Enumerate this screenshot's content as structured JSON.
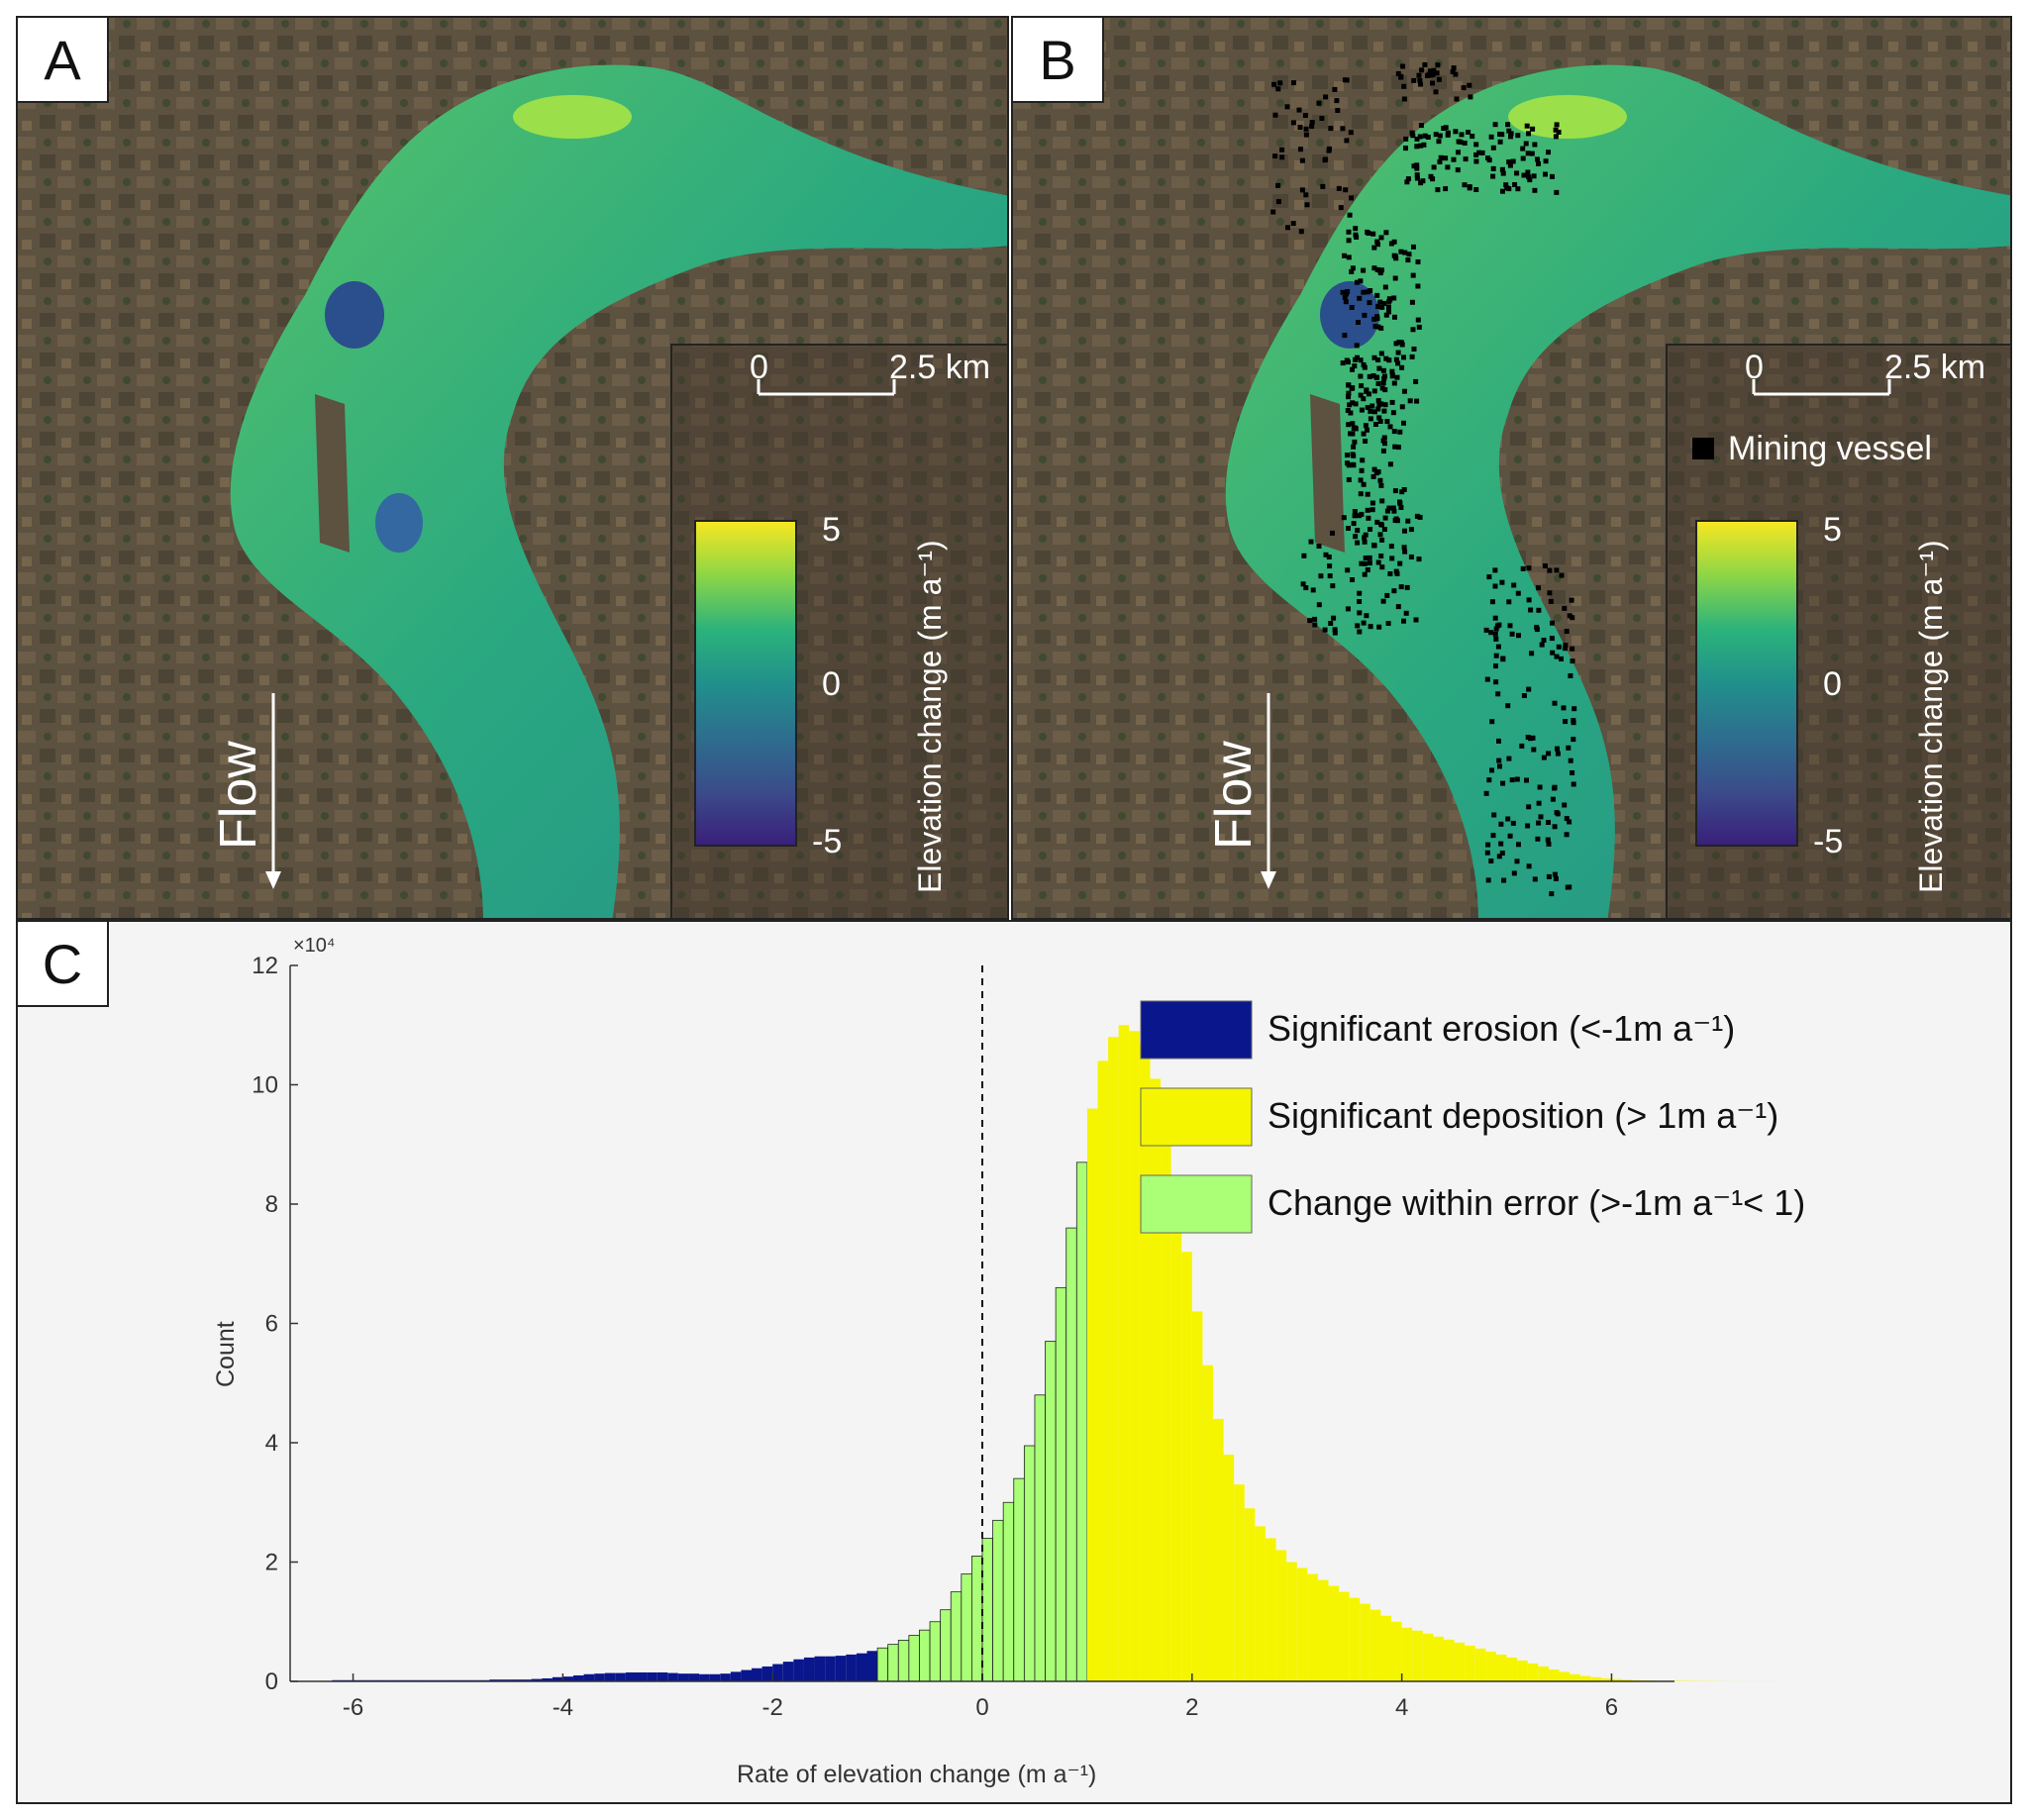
{
  "panels": {
    "a": {
      "letter": "A",
      "scale_bar": {
        "start_label": "0",
        "end_label": "2.5 km"
      },
      "flow_label": "Flow",
      "colorbar": {
        "max_label": "5",
        "mid_label": "0",
        "min_label": "-5",
        "title": "Elevation change (m a⁻¹)",
        "colors": [
          "#f9e721",
          "#8ed645",
          "#2cb37b",
          "#21908c",
          "#2d6e8e",
          "#3b4c8a",
          "#3a1f7a"
        ]
      }
    },
    "b": {
      "letter": "B",
      "scale_bar": {
        "start_label": "0",
        "end_label": "2.5 km"
      },
      "legend_label": "Mining vessel",
      "flow_label": "Flow",
      "colorbar": {
        "max_label": "5",
        "mid_label": "0",
        "min_label": "-5",
        "title": "Elevation change (m a⁻¹)",
        "colors": [
          "#f9e721",
          "#8ed645",
          "#2cb37b",
          "#21908c",
          "#2d6e8e",
          "#3b4c8a",
          "#3a1f7a"
        ]
      }
    },
    "c": {
      "letter": "C"
    }
  },
  "chart_data": {
    "type": "bar",
    "xlabel": "Rate of elevation change (m a⁻¹)",
    "ylabel": "Count",
    "y_multiplier_label": "×10⁴",
    "xlim": [
      -6.6,
      6.6
    ],
    "ylim": [
      0,
      120000
    ],
    "x_ticks": [
      -6,
      -4,
      -2,
      0,
      2,
      4,
      6
    ],
    "y_ticks": [
      0,
      20000,
      40000,
      60000,
      80000,
      100000,
      120000
    ],
    "y_tick_labels": [
      "0",
      "2",
      "4",
      "6",
      "8",
      "10",
      "12"
    ],
    "bin_width": 0.1,
    "bin_start": -6.2,
    "counts": [
      200,
      200,
      200,
      200,
      200,
      200,
      200,
      200,
      200,
      200,
      200,
      200,
      200,
      200,
      200,
      300,
      300,
      300,
      300,
      400,
      500,
      700,
      800,
      1000,
      1200,
      1300,
      1400,
      1400,
      1500,
      1500,
      1500,
      1500,
      1400,
      1300,
      1300,
      1200,
      1200,
      1300,
      1600,
      1900,
      2200,
      2500,
      2900,
      3300,
      3700,
      4000,
      4200,
      4200,
      4300,
      4500,
      4700,
      5100,
      5600,
      6200,
      6900,
      7700,
      8600,
      10000,
      12000,
      15000,
      18000,
      21000,
      24000,
      27000,
      30000,
      34000,
      39500,
      48000,
      57000,
      66000,
      76000,
      87000,
      96000,
      104000,
      108000,
      110000,
      109000,
      107000,
      101000,
      92000,
      81000,
      72000,
      62000,
      53000,
      44000,
      38000,
      33000,
      29000,
      26000,
      24000,
      22000,
      20000,
      19000,
      18000,
      17000,
      16000,
      15000,
      14000,
      13000,
      12000,
      11000,
      10000,
      9000,
      8500,
      8000,
      7500,
      7000,
      6500,
      6000,
      5500,
      5000,
      4500,
      4000,
      3500,
      3000,
      2500,
      2000,
      1600,
      1200,
      900,
      700,
      500,
      400,
      300,
      200,
      150,
      100,
      100,
      80,
      60,
      50,
      40,
      30,
      20,
      20,
      10,
      10,
      10
    ],
    "threshold_line_x": 0,
    "categories": [
      {
        "name": "Significant erosion (<-1m a⁻¹)",
        "range": [
          -6.2,
          -1.0
        ],
        "color": "#0a168c"
      },
      {
        "name": "Significant deposition (> 1m a⁻¹)",
        "range": [
          1.0,
          7.0
        ],
        "color": "#f5f500"
      },
      {
        "name": "Change within error (>-1m a⁻¹< 1)",
        "range": [
          -1.0,
          1.0
        ],
        "color": "#aaff77"
      }
    ],
    "legend_position": "top-right",
    "grid": false
  }
}
